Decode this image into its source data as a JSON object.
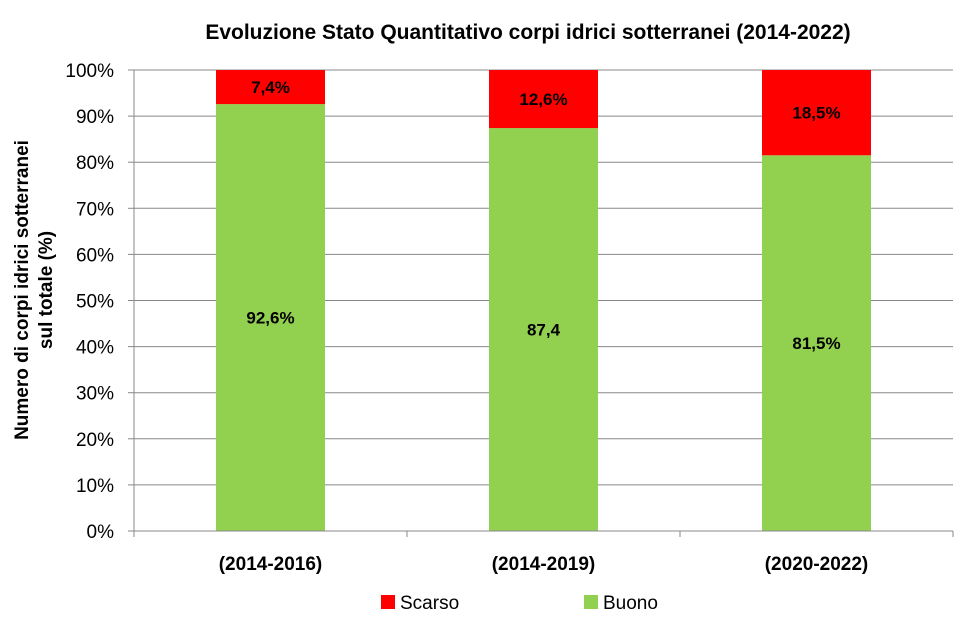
{
  "chart_data": {
    "type": "bar",
    "stacked": true,
    "title": "Evoluzione Stato Quantitativo corpi idrici sotterranei (2014-2022)",
    "xlabel": "",
    "ylabel_lines": [
      "Numero di corpi idrici sotterranei",
      "sul totale (%)"
    ],
    "ylim": [
      0,
      100
    ],
    "yticks": [
      0,
      10,
      20,
      30,
      40,
      50,
      60,
      70,
      80,
      90,
      100
    ],
    "ytick_labels": [
      "0%",
      "10%",
      "20%",
      "30%",
      "40%",
      "50%",
      "60%",
      "70%",
      "80%",
      "90%",
      "100%"
    ],
    "grid": true,
    "legend_position": "bottom",
    "categories": [
      "(2014-2016)",
      "(2014-2019)",
      "(2020-2022)"
    ],
    "series": [
      {
        "name": "Buono",
        "color": "#92d050",
        "values": [
          92.6,
          87.4,
          81.5
        ],
        "labels": [
          "92,6%",
          "87,4",
          "81,5%"
        ]
      },
      {
        "name": "Scarso",
        "color": "#ff0000",
        "values": [
          7.4,
          12.6,
          18.5
        ],
        "labels": [
          "7,4%",
          "12,6%",
          "18,5%"
        ]
      }
    ],
    "legend_order": [
      "Scarso",
      "Buono"
    ]
  }
}
